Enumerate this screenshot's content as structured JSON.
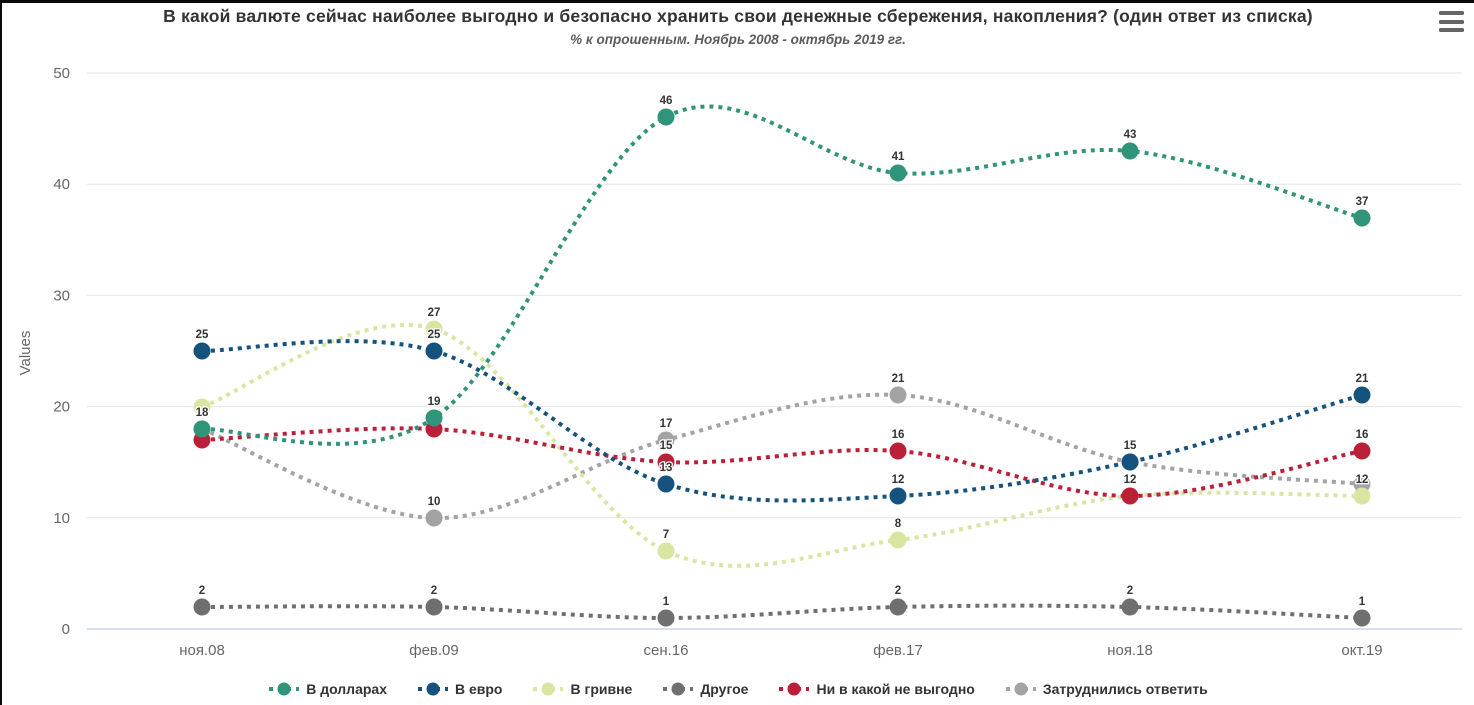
{
  "header": {
    "title": "В какой валюте сейчас наиболее выгодно и безопасно хранить свои денежные сбережения, накопления? (один ответ из списка)",
    "subtitle": "% к опрошенным. Ноябрь 2008 - октябрь 2019 гг.",
    "menu_icon": "hamburger-icon"
  },
  "chart_data": {
    "type": "line",
    "line_style": "dotted-spline",
    "title": "В какой валюте сейчас наиболее выгодно и безопасно хранить свои денежные сбережения, накопления? (один ответ из списка)",
    "subtitle": "% к опрошенным. Ноябрь 2008 - октябрь 2019 гг.",
    "categories": [
      "ноя.08",
      "фев.09",
      "сен.16",
      "фев.17",
      "ноя.18",
      "окт.19"
    ],
    "series": [
      {
        "name": "В долларах",
        "color": "#2f9479",
        "values": [
          18,
          19,
          46,
          41,
          43,
          37
        ],
        "hidden_labels": []
      },
      {
        "name": "В евро",
        "color": "#15537e",
        "values": [
          25,
          25,
          13,
          12,
          15,
          21
        ],
        "hidden_labels": []
      },
      {
        "name": "В гривне",
        "color": "#d9e6a1",
        "values": [
          20,
          27,
          7,
          8,
          12,
          12
        ],
        "hidden_labels": [
          0
        ]
      },
      {
        "name": "Другое",
        "color": "#6f6f6f",
        "values": [
          2,
          2,
          1,
          2,
          2,
          1
        ],
        "hidden_labels": []
      },
      {
        "name": "Ни в какой не выгодно",
        "color": "#bc2038",
        "values": [
          17,
          18,
          15,
          16,
          12,
          16
        ],
        "hidden_labels": [
          0,
          1
        ]
      },
      {
        "name": "Затруднились ответить",
        "color": "#a3a3a3",
        "values": [
          18,
          10,
          17,
          21,
          15,
          13
        ],
        "hidden_labels": [
          5
        ]
      }
    ],
    "xlabel": "",
    "ylabel": "Values",
    "ylim": [
      0,
      50
    ],
    "yticks": [
      0,
      10,
      20,
      30,
      40,
      50
    ],
    "grid": true,
    "legend_position": "bottom",
    "colors": {
      "grid_line": "#e6e6e6",
      "axis_line": "#ccd6eb",
      "axis_text": "#666666",
      "data_label": "#333333",
      "title_text": "#333333"
    }
  }
}
